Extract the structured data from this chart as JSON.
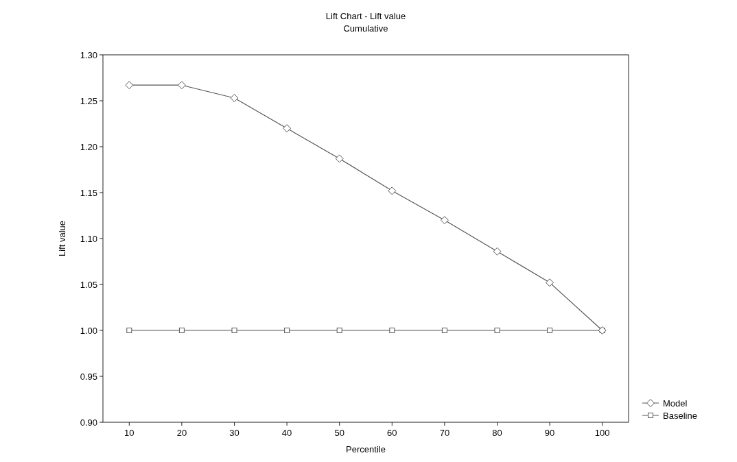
{
  "chart_data": {
    "type": "line",
    "title": "Lift Chart - Lift value",
    "subtitle": "Cumulative",
    "xlabel": "Percentile",
    "ylabel": "Lift value",
    "x": [
      10,
      20,
      30,
      40,
      50,
      60,
      70,
      80,
      90,
      100
    ],
    "xlim": [
      5,
      105
    ],
    "xticks": [
      10,
      20,
      30,
      40,
      50,
      60,
      70,
      80,
      90,
      100
    ],
    "ylim": [
      0.9,
      1.3
    ],
    "yticks": [
      {
        "value": 0.9,
        "label": "0.90"
      },
      {
        "value": 0.95,
        "label": "0.95"
      },
      {
        "value": 1.0,
        "label": "1.00"
      },
      {
        "value": 1.05,
        "label": "1.05"
      },
      {
        "value": 1.1,
        "label": "1.10"
      },
      {
        "value": 1.15,
        "label": "1.15"
      },
      {
        "value": 1.2,
        "label": "1.20"
      },
      {
        "value": 1.25,
        "label": "1.25"
      },
      {
        "value": 1.3,
        "label": "1.30"
      }
    ],
    "series": [
      {
        "name": "Model",
        "color": "#555555",
        "marker": "diamond",
        "values": [
          1.267,
          1.267,
          1.253,
          1.22,
          1.187,
          1.152,
          1.12,
          1.086,
          1.052,
          1.0
        ]
      },
      {
        "name": "Baseline",
        "color": "#555555",
        "marker": "square",
        "values": [
          1.0,
          1.0,
          1.0,
          1.0,
          1.0,
          1.0,
          1.0,
          1.0,
          1.0,
          1.0
        ]
      }
    ],
    "grid": false,
    "legend": "bottom right",
    "line_style": "solid"
  }
}
